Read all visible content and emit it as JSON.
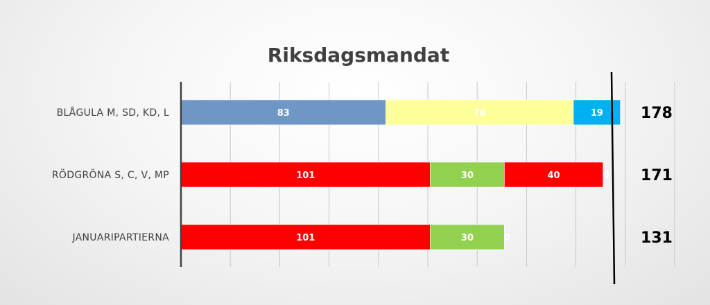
{
  "chart_data": {
    "type": "bar",
    "orientation": "horizontal",
    "stacked": true,
    "title": "Riksdagsmandat",
    "categories": [
      "BLÅGULA M, SD, KD, L",
      "RÖDGRÖNA S, C, V, MP",
      "JANUARIPARTIERNA"
    ],
    "rows": [
      {
        "category": "BLÅGULA M, SD, KD, L",
        "total": "178",
        "segments": [
          {
            "value": 83,
            "label": "83",
            "color": "#6f97c6"
          },
          {
            "value": 76,
            "label": "76",
            "color": "#ffff99"
          },
          {
            "value": 19,
            "label": "19",
            "color": "#00b0f0"
          }
        ]
      },
      {
        "category": "RÖDGRÖNA S, C, V, MP",
        "total": "171",
        "segments": [
          {
            "value": 101,
            "label": "101",
            "color": "#ff0000"
          },
          {
            "value": 30,
            "label": "30",
            "color": "#92d050"
          },
          {
            "value": 40,
            "label": "40",
            "color": "#ff0000"
          },
          {
            "value": 0,
            "label": "0",
            "color": "#ff0000"
          }
        ]
      },
      {
        "category": "JANUARIPARTIERNA",
        "total": "131",
        "segments": [
          {
            "value": 101,
            "label": "101",
            "color": "#ff0000"
          },
          {
            "value": 30,
            "label": "30",
            "color": "#92d050"
          },
          {
            "value": 0,
            "label": "0",
            "color": "#92d050"
          }
        ]
      }
    ],
    "xlim": [
      0,
      200
    ],
    "grid": true,
    "gridline_step": 20,
    "majority_line": 175,
    "legend": "none"
  }
}
